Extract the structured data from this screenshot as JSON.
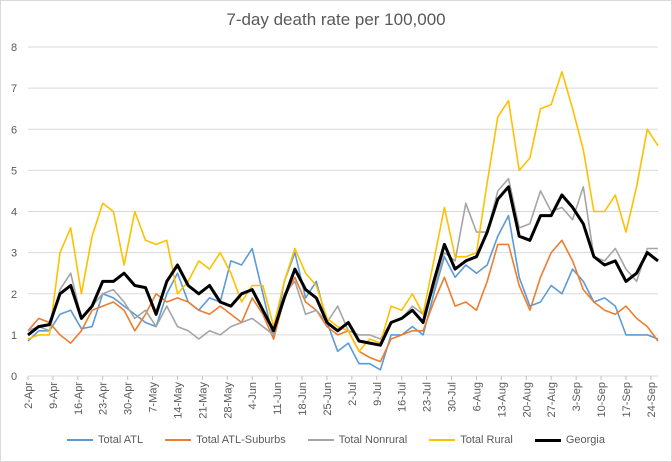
{
  "chart_data": {
    "type": "line",
    "title": "7-day death rate per 100,000",
    "xlabel": "",
    "ylabel": "",
    "ylim": [
      0,
      8
    ],
    "yticks": [
      "0",
      "1",
      "2",
      "3",
      "4",
      "5",
      "6",
      "7",
      "8"
    ],
    "grid": true,
    "legend_position": "bottom",
    "xlim_days": [
      0,
      177
    ],
    "x_tick_labels": [
      "2-Apr",
      "9-Apr",
      "16-Apr",
      "23-Apr",
      "30-Apr",
      "7-May",
      "14-May",
      "21-May",
      "28-May",
      "4-Jun",
      "11-Jun",
      "18-Jun",
      "25-Jun",
      "2-Jul",
      "9-Jul",
      "16-Jul",
      "23-Jul",
      "30-Jul",
      "6-Aug",
      "13-Aug",
      "20-Aug",
      "27-Aug",
      "3-Sep",
      "10-Sep",
      "17-Sep",
      "24-Sep"
    ],
    "x_days_since_2_Apr": [
      0,
      3,
      6,
      9,
      12,
      15,
      18,
      21,
      24,
      27,
      30,
      33,
      36,
      39,
      42,
      45,
      48,
      51,
      54,
      57,
      60,
      63,
      66,
      69,
      72,
      75,
      78,
      81,
      84,
      87,
      90,
      93,
      96,
      99,
      102,
      105,
      108,
      111,
      114,
      117,
      120,
      123,
      126,
      129,
      132,
      135,
      138,
      141,
      144,
      147,
      150,
      153,
      156,
      159,
      162,
      165,
      168,
      171,
      174,
      177
    ],
    "series": [
      {
        "name": "Total ATL",
        "color": "#5b9bd5",
        "width": 1.6,
        "values": [
          0.85,
          1.1,
          1.1,
          1.5,
          1.6,
          1.15,
          1.2,
          2.0,
          1.9,
          1.7,
          1.5,
          1.3,
          1.2,
          2.0,
          2.5,
          1.8,
          1.6,
          1.9,
          1.8,
          2.8,
          2.7,
          3.1,
          2.0,
          0.9,
          2.3,
          3.0,
          1.9,
          2.3,
          1.3,
          0.6,
          0.8,
          0.3,
          0.3,
          0.15,
          1.0,
          1.0,
          1.2,
          1.0,
          2.0,
          2.9,
          2.4,
          2.7,
          2.5,
          2.7,
          3.4,
          3.9,
          2.4,
          1.7,
          1.8,
          2.2,
          2.0,
          2.6,
          2.3,
          1.8,
          1.9,
          1.7,
          1.0,
          1.0,
          1.0,
          0.9
        ]
      },
      {
        "name": "Total ATL-Suburbs",
        "color": "#ed7d31",
        "width": 1.6,
        "values": [
          1.1,
          1.4,
          1.3,
          1.0,
          0.8,
          1.1,
          1.6,
          1.7,
          1.8,
          1.6,
          1.1,
          1.5,
          2.0,
          1.8,
          1.9,
          1.8,
          1.6,
          1.5,
          1.7,
          1.5,
          1.3,
          1.9,
          1.5,
          0.9,
          1.9,
          2.4,
          1.8,
          1.6,
          1.2,
          1.0,
          1.1,
          0.6,
          0.45,
          0.35,
          0.9,
          1.0,
          1.1,
          1.1,
          1.8,
          2.4,
          1.7,
          1.8,
          1.6,
          2.3,
          3.2,
          3.2,
          2.2,
          1.6,
          2.4,
          3.0,
          3.3,
          2.8,
          2.1,
          1.8,
          1.6,
          1.5,
          1.7,
          1.4,
          1.2,
          0.85
        ]
      },
      {
        "name": "Total Nonrural",
        "color": "#a5a5a5",
        "width": 1.6,
        "values": [
          1.1,
          1.2,
          1.1,
          2.1,
          2.5,
          1.4,
          1.7,
          2.0,
          2.1,
          1.8,
          1.4,
          1.6,
          1.2,
          1.7,
          1.2,
          1.1,
          0.9,
          1.1,
          1.0,
          1.2,
          1.3,
          1.4,
          1.2,
          1.0,
          2.0,
          2.3,
          1.5,
          1.6,
          1.3,
          1.7,
          1.1,
          1.0,
          1.0,
          0.9,
          1.3,
          1.4,
          1.7,
          1.5,
          2.1,
          3.0,
          2.8,
          4.2,
          3.5,
          3.5,
          4.5,
          4.8,
          3.6,
          3.7,
          4.5,
          4.0,
          4.1,
          3.8,
          4.6,
          2.9,
          2.8,
          3.1,
          2.6,
          2.3,
          3.1,
          3.1
        ]
      },
      {
        "name": "Total Rural",
        "color": "#ffc000",
        "width": 1.6,
        "values": [
          0.9,
          1.0,
          1.0,
          3.0,
          3.6,
          2.0,
          3.4,
          4.2,
          4.0,
          2.7,
          4.0,
          3.3,
          3.2,
          3.3,
          2.0,
          2.3,
          2.8,
          2.6,
          3.0,
          2.5,
          1.8,
          2.2,
          2.2,
          1.2,
          2.3,
          3.1,
          2.5,
          2.2,
          1.4,
          1.2,
          1.1,
          0.6,
          0.9,
          0.8,
          1.7,
          1.6,
          2.0,
          1.5,
          2.8,
          4.1,
          2.9,
          2.9,
          3.0,
          4.7,
          6.3,
          6.7,
          5.0,
          5.3,
          6.5,
          6.6,
          7.4,
          6.5,
          5.5,
          4.0,
          4.0,
          4.4,
          3.5,
          4.6,
          6.0,
          5.6
        ]
      },
      {
        "name": "Georgia",
        "color": "#000000",
        "width": 3,
        "values": [
          1.0,
          1.2,
          1.25,
          2.0,
          2.2,
          1.4,
          1.7,
          2.3,
          2.3,
          2.5,
          2.2,
          2.15,
          1.5,
          2.3,
          2.7,
          2.2,
          2.0,
          2.2,
          1.8,
          1.7,
          2.0,
          2.1,
          1.6,
          1.1,
          1.9,
          2.6,
          2.1,
          1.9,
          1.3,
          1.1,
          1.3,
          0.85,
          0.8,
          0.75,
          1.3,
          1.4,
          1.6,
          1.3,
          2.3,
          3.2,
          2.6,
          2.8,
          2.9,
          3.5,
          4.3,
          4.6,
          3.4,
          3.3,
          3.9,
          3.9,
          4.4,
          4.1,
          3.7,
          2.9,
          2.7,
          2.8,
          2.3,
          2.5,
          3.0,
          2.8
        ]
      }
    ]
  }
}
